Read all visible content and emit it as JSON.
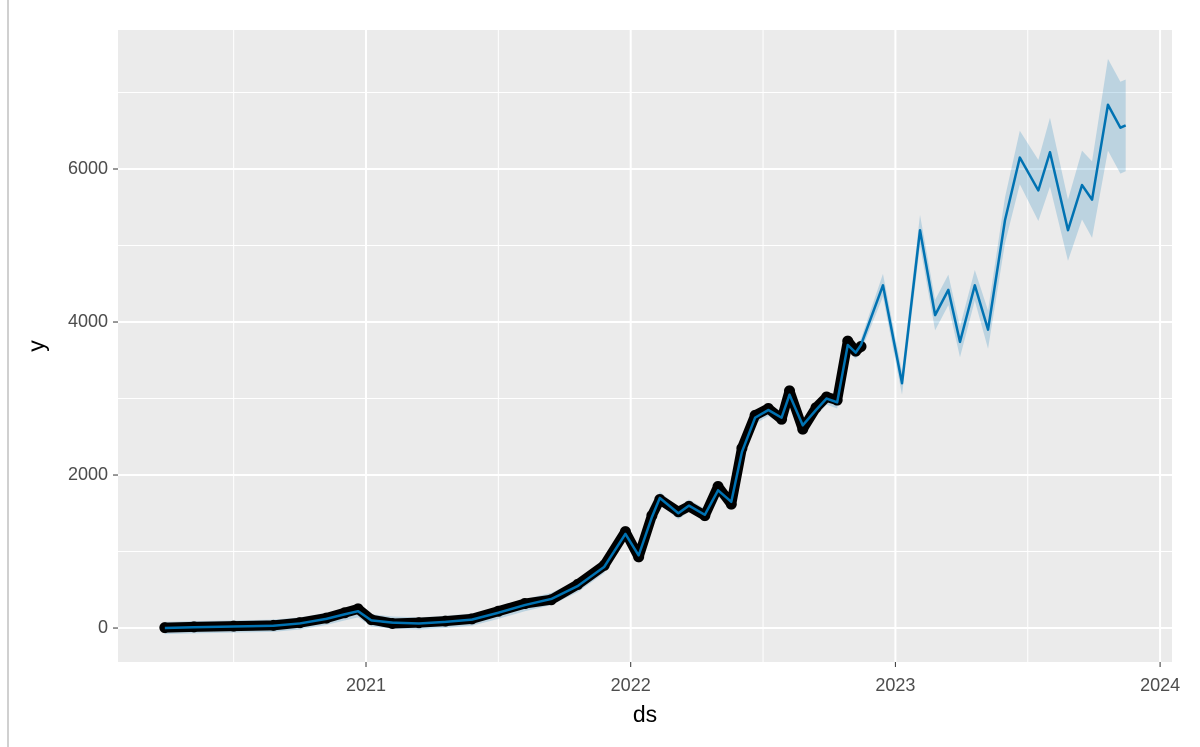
{
  "chart_data": {
    "type": "forecast",
    "x_label": "ds",
    "y_label": "y",
    "x": [
      2020.24,
      2020.35,
      2020.5,
      2020.65,
      2020.75,
      2020.85,
      2020.92,
      2020.97,
      2021.02,
      2021.1,
      2021.2,
      2021.3,
      2021.4,
      2021.5,
      2021.6,
      2021.7,
      2021.8,
      2021.9,
      2021.98,
      2022.03,
      2022.08,
      2022.11,
      2022.18,
      2022.22,
      2022.28,
      2022.33,
      2022.38,
      2022.42,
      2022.47,
      2022.52,
      2022.57,
      2022.6,
      2022.65,
      2022.7,
      2022.74,
      2022.78,
      2022.82,
      2022.85,
      2022.87,
      2022.953,
      2023.025,
      2023.093,
      2023.15,
      2023.2,
      2023.244,
      2023.3,
      2023.35,
      2023.414,
      2023.47,
      2023.54,
      2023.584,
      2023.652,
      2023.705,
      2023.743,
      2023.803,
      2023.85,
      2023.87
    ],
    "observed": {
      "color": "#000000",
      "values": [
        5,
        15,
        25,
        35,
        70,
        130,
        200,
        250,
        110,
        60,
        70,
        90,
        120,
        220,
        320,
        370,
        570,
        820,
        1260,
        930,
        1470,
        1680,
        1520,
        1590,
        1470,
        1850,
        1620,
        2350,
        2780,
        2870,
        2730,
        3100,
        2600,
        2880,
        3020,
        2980,
        3750,
        3620,
        3680,
        null,
        null,
        null,
        null,
        null,
        null,
        null,
        null,
        null,
        null,
        null,
        null,
        null,
        null,
        null,
        null,
        null,
        null
      ]
    },
    "fitted": {
      "color": "#0072B2",
      "values": [
        0,
        10,
        20,
        30,
        60,
        120,
        180,
        220,
        100,
        70,
        60,
        80,
        110,
        200,
        300,
        380,
        550,
        800,
        1230,
        950,
        1450,
        1700,
        1500,
        1600,
        1480,
        1800,
        1650,
        2300,
        2750,
        2850,
        2750,
        3050,
        2650,
        2850,
        3000,
        2950,
        3700,
        3600,
        3700,
        4480,
        3200,
        5200,
        4090,
        4420,
        3740,
        4480,
        3900,
        5330,
        6150,
        5720,
        6220,
        5200,
        5790,
        5600,
        6840,
        6540,
        6570
      ]
    },
    "interval": {
      "color": "#0072B2",
      "lower": [
        -80,
        -70,
        -60,
        -50,
        -20,
        40,
        100,
        140,
        20,
        -10,
        -20,
        0,
        30,
        120,
        220,
        300,
        470,
        720,
        1150,
        870,
        1370,
        1620,
        1420,
        1520,
        1400,
        1720,
        1570,
        2220,
        2670,
        2770,
        2670,
        2970,
        2570,
        2770,
        2920,
        2870,
        3620,
        3520,
        3620,
        4330,
        3050,
        5000,
        3890,
        4220,
        3540,
        4280,
        3650,
        5030,
        5800,
        5320,
        5770,
        4800,
        5340,
        5100,
        6240,
        5940,
        5970
      ],
      "upper": [
        80,
        90,
        100,
        110,
        140,
        200,
        260,
        300,
        180,
        150,
        140,
        160,
        190,
        280,
        380,
        460,
        630,
        880,
        1310,
        1030,
        1530,
        1780,
        1580,
        1680,
        1560,
        1880,
        1730,
        2380,
        2830,
        2930,
        2830,
        3130,
        2730,
        2930,
        3080,
        3030,
        3780,
        3680,
        3780,
        4630,
        3350,
        5400,
        4290,
        4620,
        3940,
        4680,
        4150,
        5630,
        6500,
        6120,
        6670,
        5600,
        6240,
        6100,
        7440,
        7140,
        7170
      ]
    },
    "xlim": [
      2020.063,
      2024.045
    ],
    "ylim": [
      -444,
      7817
    ],
    "xticks": [
      2021,
      2022,
      2023,
      2024
    ],
    "yticks": [
      0,
      2000,
      4000,
      6000
    ],
    "x_minor_ticks": [
      2020.5,
      2021.5,
      2022.5,
      2023.5
    ],
    "y_minor_ticks": [
      1000,
      3000,
      5000,
      7000
    ],
    "grid": true
  }
}
